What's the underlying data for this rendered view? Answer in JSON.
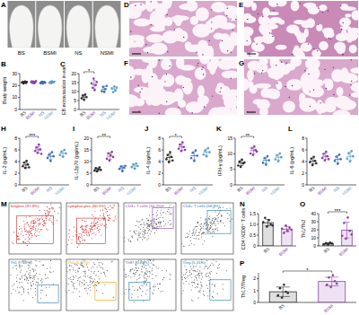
{
  "photos": {
    "label": "A",
    "groups": [
      "BS",
      "BSMI",
      "NS",
      "NSMI"
    ]
  },
  "histology": {
    "labels": [
      "D",
      "E",
      "F",
      "G"
    ]
  },
  "flow": {
    "label": "M",
    "gates": [
      {
        "text": "Singlets (97.8%)",
        "color": "#d62728"
      },
      {
        "text": "Lymphocytes (60.5%)",
        "color": "#d62728"
      },
      {
        "text": "CD3+ T cells (34.2%)",
        "color": "#8e44ad"
      },
      {
        "text": "CD4+ T cells (58.9%)",
        "color": "#1f77b4"
      },
      {
        "text": "Th1 (7.28%)",
        "color": "#1f77b4"
      },
      {
        "text": "Th2 (0.27%)",
        "color": "#e6a100"
      },
      {
        "text": "Th17 (0.86%)",
        "color": "#1f77b4"
      },
      {
        "text": "Treg (5.31%)",
        "color": "#1f77b4"
      }
    ]
  },
  "chart_data": [
    {
      "type": "strip",
      "label": "B",
      "ylabel": "Body weight",
      "categories": [
        "BS",
        "BSMI",
        "NS",
        "NSMI"
      ],
      "colors": [
        "#2b2b2b",
        "#8e3fa6",
        "#3b6fb6",
        "#5aa0c8"
      ],
      "values": [
        [
          22.5,
          23.1,
          21.8,
          22.9,
          23.4,
          22.2,
          23.0
        ],
        [
          22.8,
          23.5,
          22.1,
          23.2,
          21.9,
          22.6,
          23.8
        ],
        [
          22.0,
          22.7,
          23.3,
          21.6,
          22.9,
          23.1,
          22.4
        ],
        [
          22.3,
          23.0,
          21.9,
          23.6,
          22.5,
          22.8,
          23.2
        ]
      ],
      "means": [
        22.7,
        22.8,
        22.6,
        22.8
      ],
      "errors": [
        0.6,
        0.7,
        0.6,
        0.6
      ],
      "ylim": [
        0,
        30
      ],
      "yticks": [
        0,
        10,
        20,
        30
      ],
      "significance": []
    },
    {
      "type": "strip",
      "label": "C",
      "ylabel": "EB extravasation in ear",
      "categories": [
        "BS",
        "BSMI",
        "NS",
        "NSMI"
      ],
      "colors": [
        "#2b2b2b",
        "#8e3fa6",
        "#3b6fb6",
        "#5aa0c8"
      ],
      "values": [
        [
          6.2,
          7.8,
          5.4,
          8.3,
          6.9
        ],
        [
          14.6,
          12.1,
          17.2,
          10.8,
          13.5,
          15.3
        ],
        [
          10.2,
          12.6,
          9.8,
          11.4,
          13.1
        ],
        [
          11.8,
          9.6,
          12.9,
          10.5,
          12.2
        ]
      ],
      "means": [
        6.9,
        13.9,
        11.4,
        11.4
      ],
      "errors": [
        1.1,
        2.3,
        1.4,
        1.3
      ],
      "ylim": [
        0,
        20
      ],
      "yticks": [
        0,
        5,
        10,
        15,
        20
      ],
      "significance": [
        {
          "label": "*",
          "groups": [
            "BS",
            "BSMI"
          ]
        }
      ]
    },
    {
      "type": "strip",
      "label": "H",
      "ylabel": "IL-2 (pg/mL)",
      "categories": [
        "BS",
        "BSMI",
        "NS",
        "NSMI"
      ],
      "colors": [
        "#2b2b2b",
        "#8e3fa6",
        "#3b6fb6",
        "#5aa0c8"
      ],
      "values": [
        [
          3.2,
          3.8,
          2.9,
          4.1,
          3.5,
          3.0
        ],
        [
          5.8,
          6.4,
          5.5,
          6.9,
          6.1,
          5.3
        ],
        [
          4.6,
          5.2,
          4.1,
          5.6,
          4.9
        ],
        [
          5.1,
          5.7,
          4.8,
          6.0,
          5.4
        ]
      ],
      "means": [
        3.4,
        6.0,
        4.9,
        5.4
      ],
      "errors": [
        0.45,
        0.56,
        0.57,
        0.47
      ],
      "ylim": [
        0,
        8
      ],
      "yticks": [
        0,
        2,
        4,
        6,
        8
      ],
      "significance": [
        {
          "label": "***",
          "groups": [
            "BS",
            "BSMI"
          ]
        }
      ]
    },
    {
      "type": "strip",
      "label": "I",
      "ylabel": "IL-12p70 (pg/mL)",
      "categories": [
        "BS",
        "BSMI",
        "NS",
        "NSMI"
      ],
      "colors": [
        "#2b2b2b",
        "#8e3fa6",
        "#3b6fb6",
        "#5aa0c8"
      ],
      "values": [
        [
          6.1,
          7.2,
          5.8,
          6.7,
          7.5,
          6.4
        ],
        [
          11.2,
          13.5,
          10.4,
          12.8,
          14.1,
          11.9
        ],
        [
          6.8,
          7.9,
          5.9,
          7.4,
          8.2
        ],
        [
          7.6,
          8.8,
          6.9,
          9.1,
          8.1
        ]
      ],
      "means": [
        6.6,
        12.3,
        7.2,
        8.1
      ],
      "errors": [
        0.6,
        1.4,
        0.9,
        0.9
      ],
      "ylim": [
        0,
        20
      ],
      "yticks": [
        0,
        5,
        10,
        15,
        20
      ],
      "significance": [
        {
          "label": "**",
          "groups": [
            "BS",
            "BSMI"
          ]
        }
      ]
    },
    {
      "type": "strip",
      "label": "J",
      "ylabel": "IL-4 (pg/mL)",
      "categories": [
        "BS",
        "BSMI",
        "NS",
        "NSMI"
      ],
      "colors": [
        "#2b2b2b",
        "#8e3fa6",
        "#3b6fb6",
        "#5aa0c8"
      ],
      "values": [
        [
          4.4,
          5.1,
          3.9,
          5.6,
          4.8,
          4.2
        ],
        [
          6.2,
          6.9,
          5.8,
          7.3,
          6.5,
          6.0
        ],
        [
          4.6,
          5.5,
          4.1,
          5.9,
          5.0
        ],
        [
          5.2,
          5.9,
          4.9,
          6.3,
          5.6
        ]
      ],
      "means": [
        4.7,
        6.5,
        5.0,
        5.6
      ],
      "errors": [
        0.6,
        0.55,
        0.7,
        0.55
      ],
      "ylim": [
        0,
        8
      ],
      "yticks": [
        0,
        2,
        4,
        6,
        8
      ],
      "significance": [
        {
          "label": "*",
          "groups": [
            "BS",
            "BSMI"
          ]
        }
      ]
    },
    {
      "type": "strip",
      "label": "K",
      "ylabel": "IFN-γ (pg/mL)",
      "categories": [
        "BS",
        "BSMI",
        "NS",
        "NSMI"
      ],
      "colors": [
        "#2b2b2b",
        "#8e3fa6",
        "#3b6fb6",
        "#5aa0c8"
      ],
      "values": [
        [
          6.2,
          7.5,
          5.8,
          8.1,
          6.9,
          7.2
        ],
        [
          10.1,
          11.8,
          9.6,
          12.4,
          11.2,
          10.7
        ],
        [
          7.1,
          8.6,
          6.5,
          9.2,
          7.9
        ],
        [
          8.2,
          9.5,
          7.6,
          10.1,
          8.9
        ]
      ],
      "means": [
        7.0,
        11.0,
        7.9,
        8.9
      ],
      "errors": [
        0.8,
        1.0,
        1.0,
        0.9
      ],
      "ylim": [
        0,
        15
      ],
      "yticks": [
        0,
        5,
        10,
        15
      ],
      "significance": [
        {
          "label": "**",
          "groups": [
            "BS",
            "BSMI"
          ]
        }
      ]
    },
    {
      "type": "strip",
      "label": "L",
      "ylabel": "IL-6 (pg/mL)",
      "categories": [
        "BS",
        "BSMI",
        "NS",
        "NSMI"
      ],
      "colors": [
        "#2b2b2b",
        "#8e3fa6",
        "#3b6fb6",
        "#5aa0c8"
      ],
      "values": [
        [
          3.9,
          4.5,
          3.4,
          4.8,
          4.1,
          3.7
        ],
        [
          4.6,
          5.3,
          4.2,
          5.7,
          4.9,
          4.4
        ],
        [
          4.1,
          4.8,
          3.6,
          5.2,
          4.4
        ],
        [
          4.5,
          5.4,
          4.0,
          5.8,
          4.9
        ]
      ],
      "means": [
        4.1,
        4.9,
        4.4,
        4.9
      ],
      "errors": [
        0.5,
        0.55,
        0.6,
        0.7
      ],
      "ylim": [
        0,
        8
      ],
      "yticks": [
        0,
        2,
        4,
        6,
        8
      ],
      "significance": []
    },
    {
      "type": "bar",
      "label": "N",
      "ylabel": "CD4⁺/CD8⁺ T cells",
      "categories": [
        "BS",
        "BSMI"
      ],
      "colors": [
        "#2b2b2b",
        "#8e3fa6"
      ],
      "values": [
        [
          1.1,
          1.3,
          0.9,
          1.2,
          1.0,
          0.95
        ],
        [
          0.8,
          0.6,
          0.95,
          0.7,
          0.85,
          0.75
        ]
      ],
      "means": [
        1.08,
        0.78
      ],
      "errors": [
        0.15,
        0.12
      ],
      "ylim": [
        0,
        1.5
      ],
      "yticks": [
        0,
        0.5,
        {
          "value": 1,
          "label": "1.0"
        },
        1.5
      ],
      "significance": []
    },
    {
      "type": "bar",
      "label": "O",
      "ylabel": "Th1/Th2",
      "categories": [
        "BS",
        "BSMI"
      ],
      "colors": [
        "#2b2b2b",
        "#8e3fa6"
      ],
      "values": [
        [
          2.1,
          3.5,
          1.8,
          4.2,
          2.9
        ],
        [
          12.5,
          28.3,
          8.9,
          35.1,
          18.6,
          14.2
        ]
      ],
      "means": [
        2.9,
        19.6
      ],
      "errors": [
        1.0,
        9.8
      ],
      "ylim": [
        0,
        40
      ],
      "yticks": [
        0,
        10,
        20,
        30,
        40
      ],
      "significance": [
        {
          "label": "***",
          "groups": [
            "BS",
            "BSMI"
          ]
        }
      ]
    },
    {
      "type": "bar",
      "label": "P",
      "ylabel": "Th17/Treg",
      "categories": [
        "BS",
        "BSMI"
      ],
      "colors": [
        "#2b2b2b",
        "#8e3fa6"
      ],
      "values": [
        [
          0.6,
          1.2,
          0.4,
          1.5,
          0.9,
          0.8
        ],
        [
          1.5,
          2.1,
          1.3,
          2.3,
          1.8,
          1.6
        ]
      ],
      "means": [
        0.9,
        1.77
      ],
      "errors": [
        0.4,
        0.37
      ],
      "ylim": [
        0,
        2.5
      ],
      "yticks": [
        0,
        1,
        2
      ],
      "significance": [
        {
          "label": "*",
          "groups": [
            "BS",
            "BSMI"
          ]
        }
      ]
    }
  ]
}
